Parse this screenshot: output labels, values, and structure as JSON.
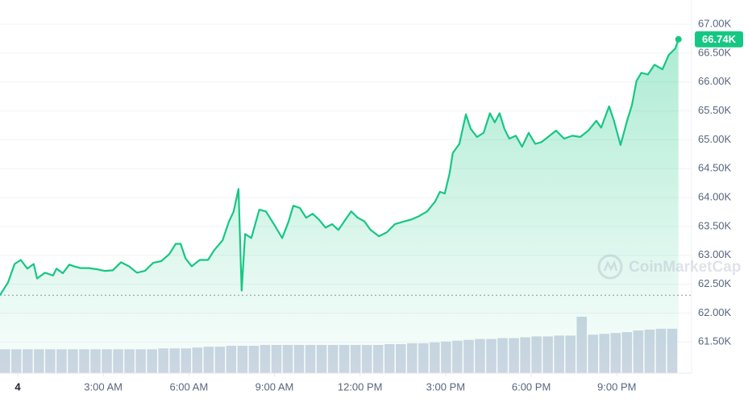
{
  "chart_data": {
    "type": "line",
    "x": [
      -0.62,
      -0.34,
      -0.11,
      0.11,
      0.34,
      0.56,
      0.68,
      0.96,
      1.24,
      1.36,
      1.58,
      1.81,
      1.98,
      2.2,
      2.49,
      2.77,
      3.05,
      3.33,
      3.62,
      3.9,
      4.18,
      4.46,
      4.75,
      5.03,
      5.31,
      5.54,
      5.71,
      5.88,
      6.1,
      6.38,
      6.67,
      6.89,
      7.18,
      7.4,
      7.57,
      7.74,
      7.85,
      7.97,
      8.19,
      8.47,
      8.7,
      8.98,
      9.27,
      9.49,
      9.66,
      9.89,
      10.11,
      10.34,
      10.56,
      10.79,
      11.02,
      11.24,
      11.53,
      11.69,
      11.92,
      12.15,
      12.37,
      12.66,
      12.94,
      13.22,
      13.5,
      13.79,
      14.07,
      14.35,
      14.63,
      14.8,
      14.97,
      15.14,
      15.25,
      15.48,
      15.71,
      15.88,
      16.1,
      16.33,
      16.55,
      16.72,
      16.89,
      17.06,
      17.23,
      17.46,
      17.68,
      17.91,
      18.14,
      18.36,
      18.59,
      18.87,
      19.15,
      19.44,
      19.72,
      20,
      20.28,
      20.45,
      20.73,
      20.9,
      21.13,
      21.36,
      21.53,
      21.69,
      21.86,
      22.09,
      22.32,
      22.6,
      22.82,
      23.05,
      23.16
    ],
    "series": [
      {
        "color": "#16c784",
        "values": [
          62310,
          62530,
          62850,
          62920,
          62770,
          62850,
          62600,
          62700,
          62650,
          62770,
          62690,
          62840,
          62810,
          62780,
          62780,
          62760,
          62730,
          62740,
          62880,
          62810,
          62700,
          62730,
          62870,
          62900,
          63020,
          63200,
          63200,
          62950,
          62810,
          62920,
          62920,
          63090,
          63260,
          63580,
          63760,
          64150,
          62390,
          63370,
          63300,
          63790,
          63760,
          63540,
          63300,
          63580,
          63860,
          63820,
          63650,
          63720,
          63620,
          63480,
          63540,
          63440,
          63650,
          63760,
          63650,
          63590,
          63440,
          63330,
          63400,
          63540,
          63580,
          63620,
          63680,
          63760,
          63930,
          64100,
          64070,
          64420,
          64770,
          64930,
          65440,
          65190,
          65050,
          65120,
          65460,
          65300,
          65460,
          65190,
          65020,
          65070,
          64880,
          65120,
          64930,
          64960,
          65050,
          65160,
          65020,
          65070,
          65050,
          65160,
          65330,
          65210,
          65580,
          65330,
          64910,
          65330,
          65600,
          66020,
          66160,
          66130,
          66300,
          66220,
          66470,
          66580,
          66740
        ]
      }
    ],
    "volume": {
      "color": "#cfd6e4",
      "values": [
        28,
        28,
        28,
        28,
        28,
        28,
        28,
        28,
        28,
        28,
        28,
        28,
        28,
        28,
        29,
        29,
        29,
        30,
        31,
        31,
        32,
        32,
        32,
        33,
        33,
        33,
        33,
        33,
        33,
        33,
        33,
        33,
        33,
        33,
        34,
        34,
        35,
        35,
        36,
        37,
        38,
        39,
        40,
        40,
        41,
        41,
        42,
        43,
        43,
        44,
        44,
        66,
        45,
        46,
        47,
        48,
        50,
        51,
        52,
        52
      ]
    },
    "xlim": [
      -0.62,
      23.62
    ],
    "xticks": [
      {
        "value": 0,
        "label": "4"
      },
      {
        "value": 3,
        "label": "3:00 AM"
      },
      {
        "value": 6,
        "label": "6:00 AM"
      },
      {
        "value": 9,
        "label": "9:00 AM"
      },
      {
        "value": 12,
        "label": "12:00 PM"
      },
      {
        "value": 15,
        "label": "3:00 PM"
      },
      {
        "value": 18,
        "label": "6:00 PM"
      },
      {
        "value": 21,
        "label": "9:00 PM"
      }
    ],
    "ylim": [
      60960,
      67420
    ],
    "yticks": [
      {
        "value": 67000,
        "label": "67.00K"
      },
      {
        "value": 66500,
        "label": "66.50K"
      },
      {
        "value": 66000,
        "label": "66.00K"
      },
      {
        "value": 65500,
        "label": "65.50K"
      },
      {
        "value": 65000,
        "label": "65.00K"
      },
      {
        "value": 64500,
        "label": "64.50K"
      },
      {
        "value": 64000,
        "label": "64.00K"
      },
      {
        "value": 63500,
        "label": "63.50K"
      },
      {
        "value": 63000,
        "label": "63.00K"
      },
      {
        "value": 62500,
        "label": "62.50K"
      },
      {
        "value": 62000,
        "label": "62.00K"
      },
      {
        "value": 61500,
        "label": "61.50K"
      }
    ],
    "grid": true,
    "open_price": 62310,
    "current_price": {
      "value": 66740,
      "label": "66.74K"
    },
    "watermark": "CoinMarketCap"
  }
}
